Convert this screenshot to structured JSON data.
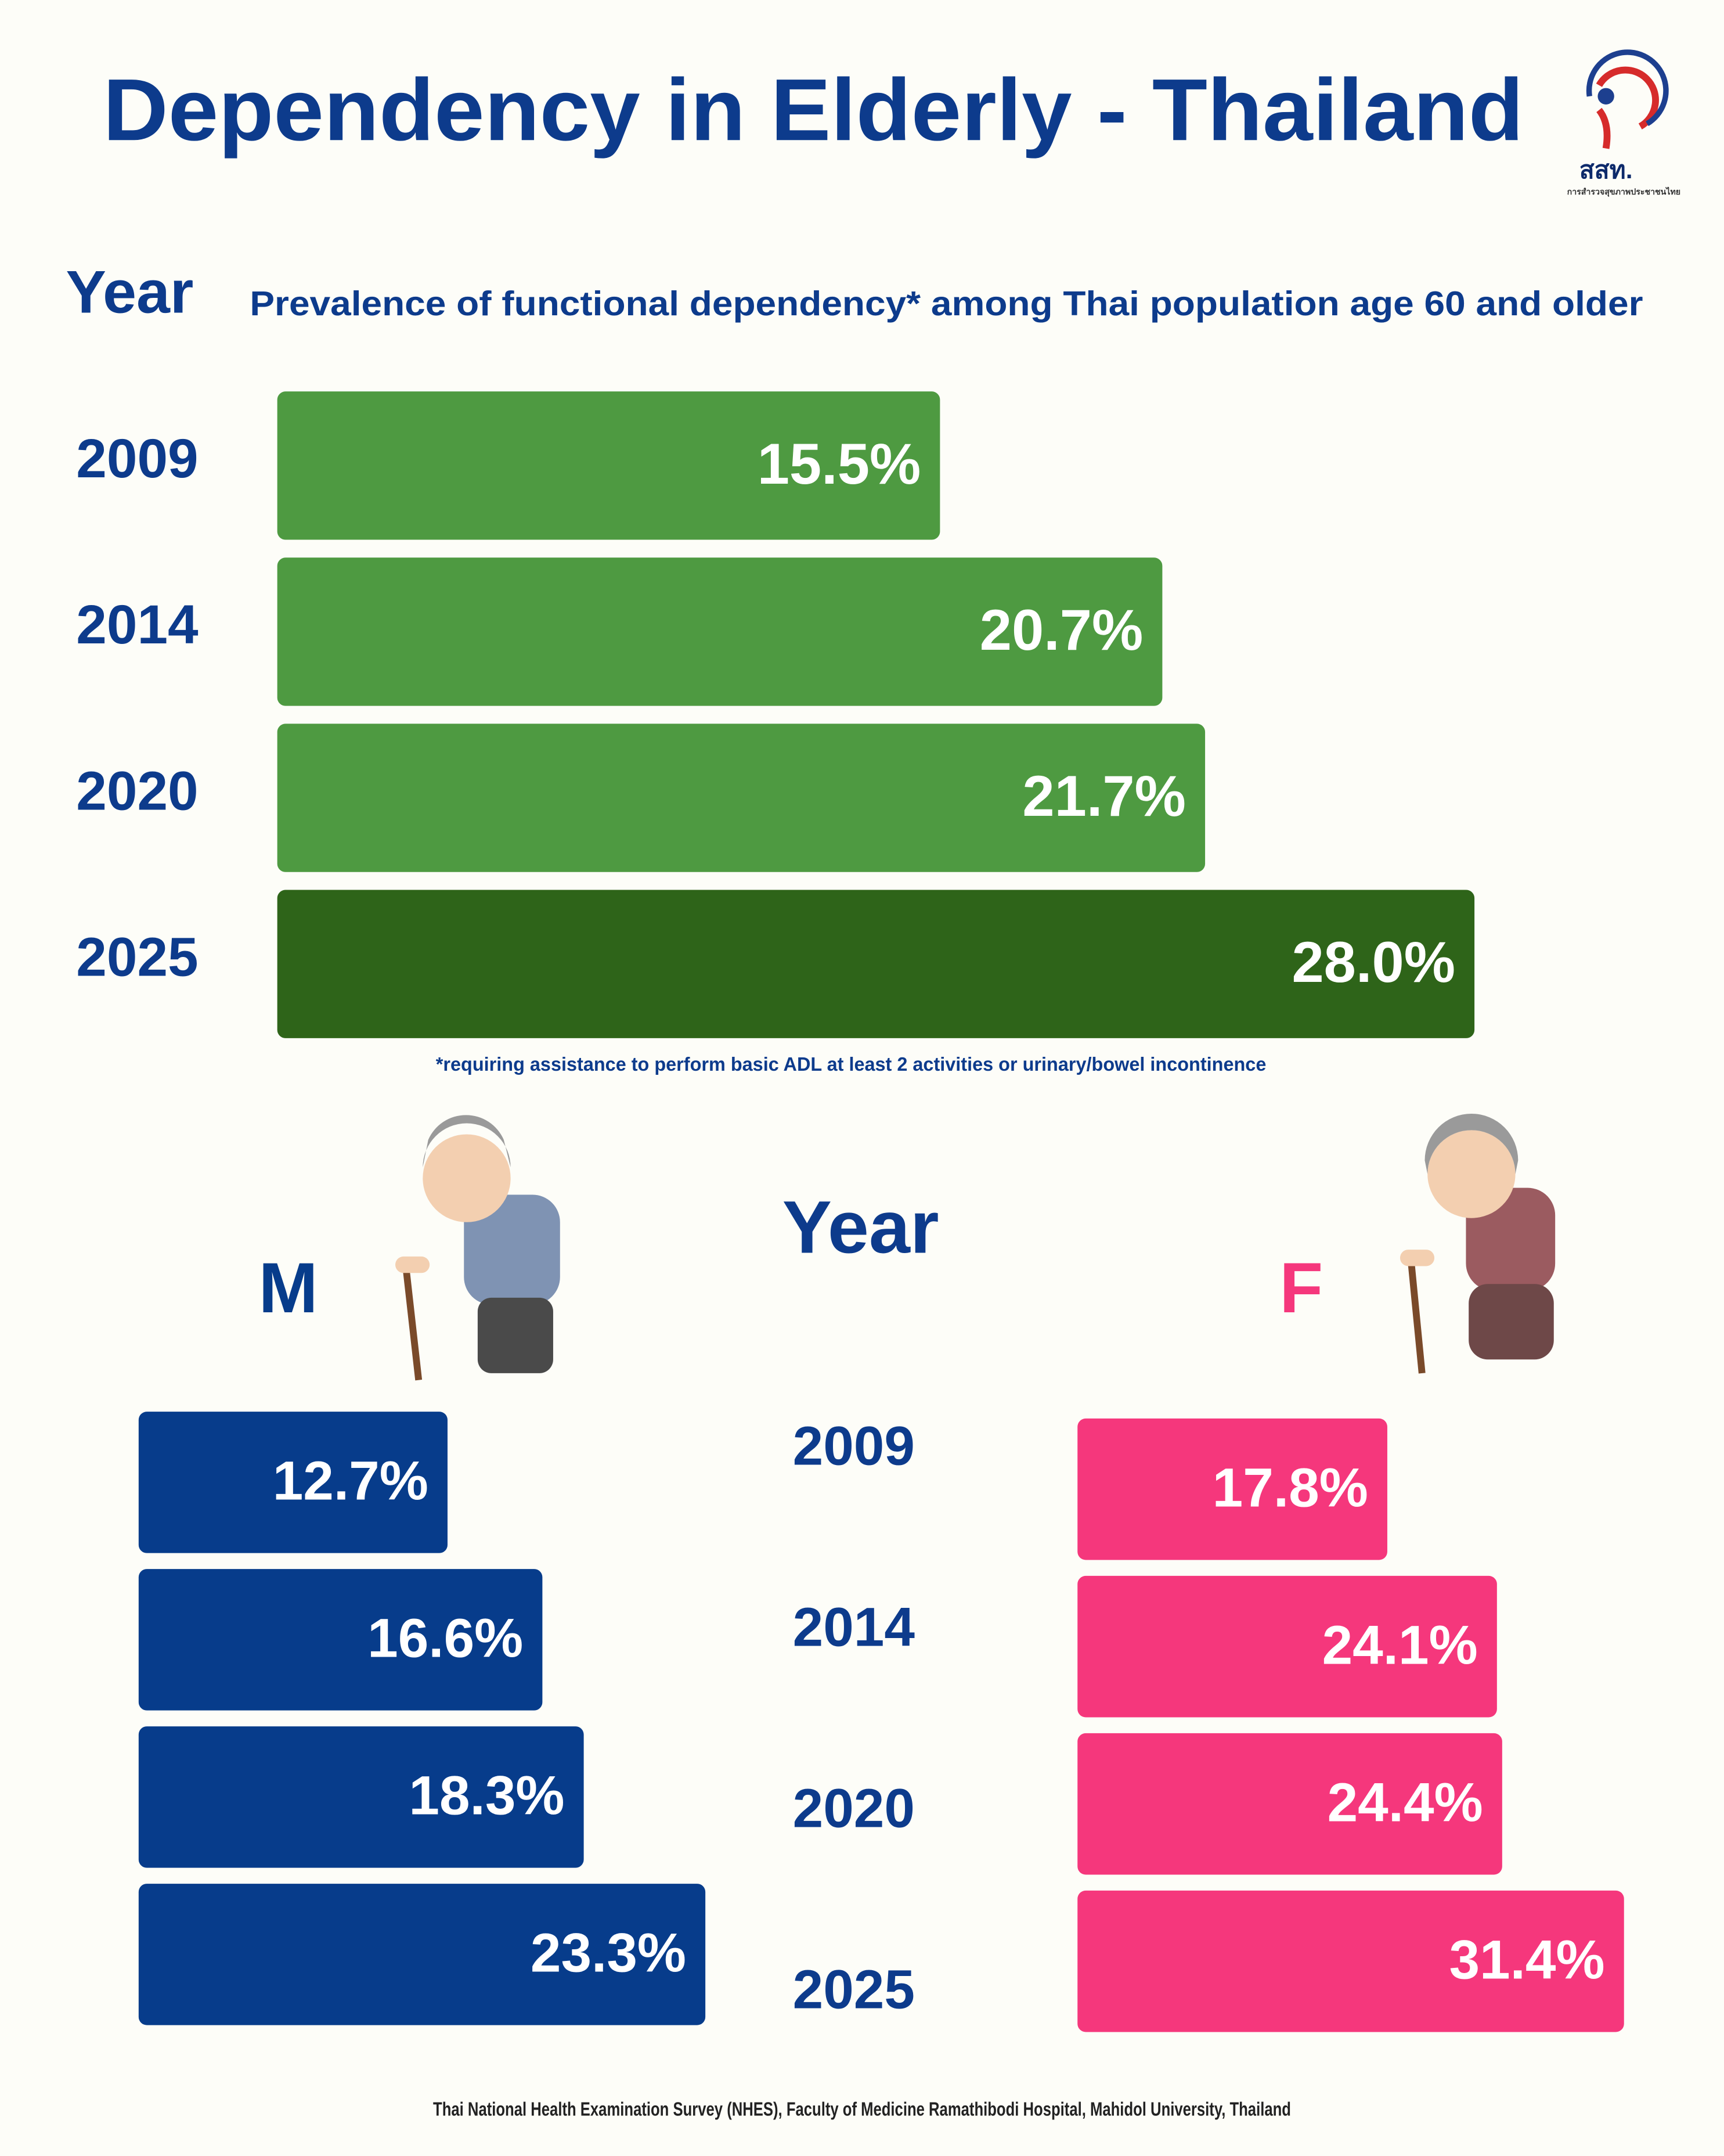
{
  "title": "Dependency in Elderly - Thailand",
  "logo": {
    "abbr": "สสท.",
    "name": "การสำรวจสุขภาพประชาชนไทย"
  },
  "source": "Thai National Health Examination Survey (NHES), Faculty of Medicine Ramathibodi Hospital, Mahidol University, Thailand",
  "chart_data": [
    {
      "type": "bar",
      "horizontal": true,
      "category_title": "Year",
      "subtitle": "Prevalence of  functional dependency* among Thai population age 60 and older",
      "footnote": "*requiring assistance to perform basic ADL at least 2 activities or urinary/bowel incontinence",
      "categories": [
        "2009",
        "2014",
        "2020",
        "2025"
      ],
      "values": [
        15.5,
        20.7,
        21.7,
        28.0
      ],
      "value_labels": [
        "15.5%",
        "20.7%",
        "21.7%",
        "28.0%"
      ],
      "colors": [
        "#4e9a41",
        "#4e9a41",
        "#4e9a41",
        "#2e6419"
      ]
    },
    {
      "type": "bar",
      "horizontal": true,
      "category_title": "Year",
      "categories": [
        "2009",
        "2014",
        "2020",
        "2025"
      ],
      "series": [
        {
          "name": "M",
          "color": "#073c8b",
          "values": [
            12.7,
            16.6,
            18.3,
            23.3
          ],
          "value_labels": [
            "12.7%",
            "16.6%",
            "18.3%",
            "23.3%"
          ]
        },
        {
          "name": "F",
          "color": "#f5377c",
          "values": [
            17.8,
            24.1,
            24.4,
            31.4
          ],
          "value_labels": [
            "17.8%",
            "24.1%",
            "24.4%",
            "31.4%"
          ]
        }
      ]
    }
  ]
}
